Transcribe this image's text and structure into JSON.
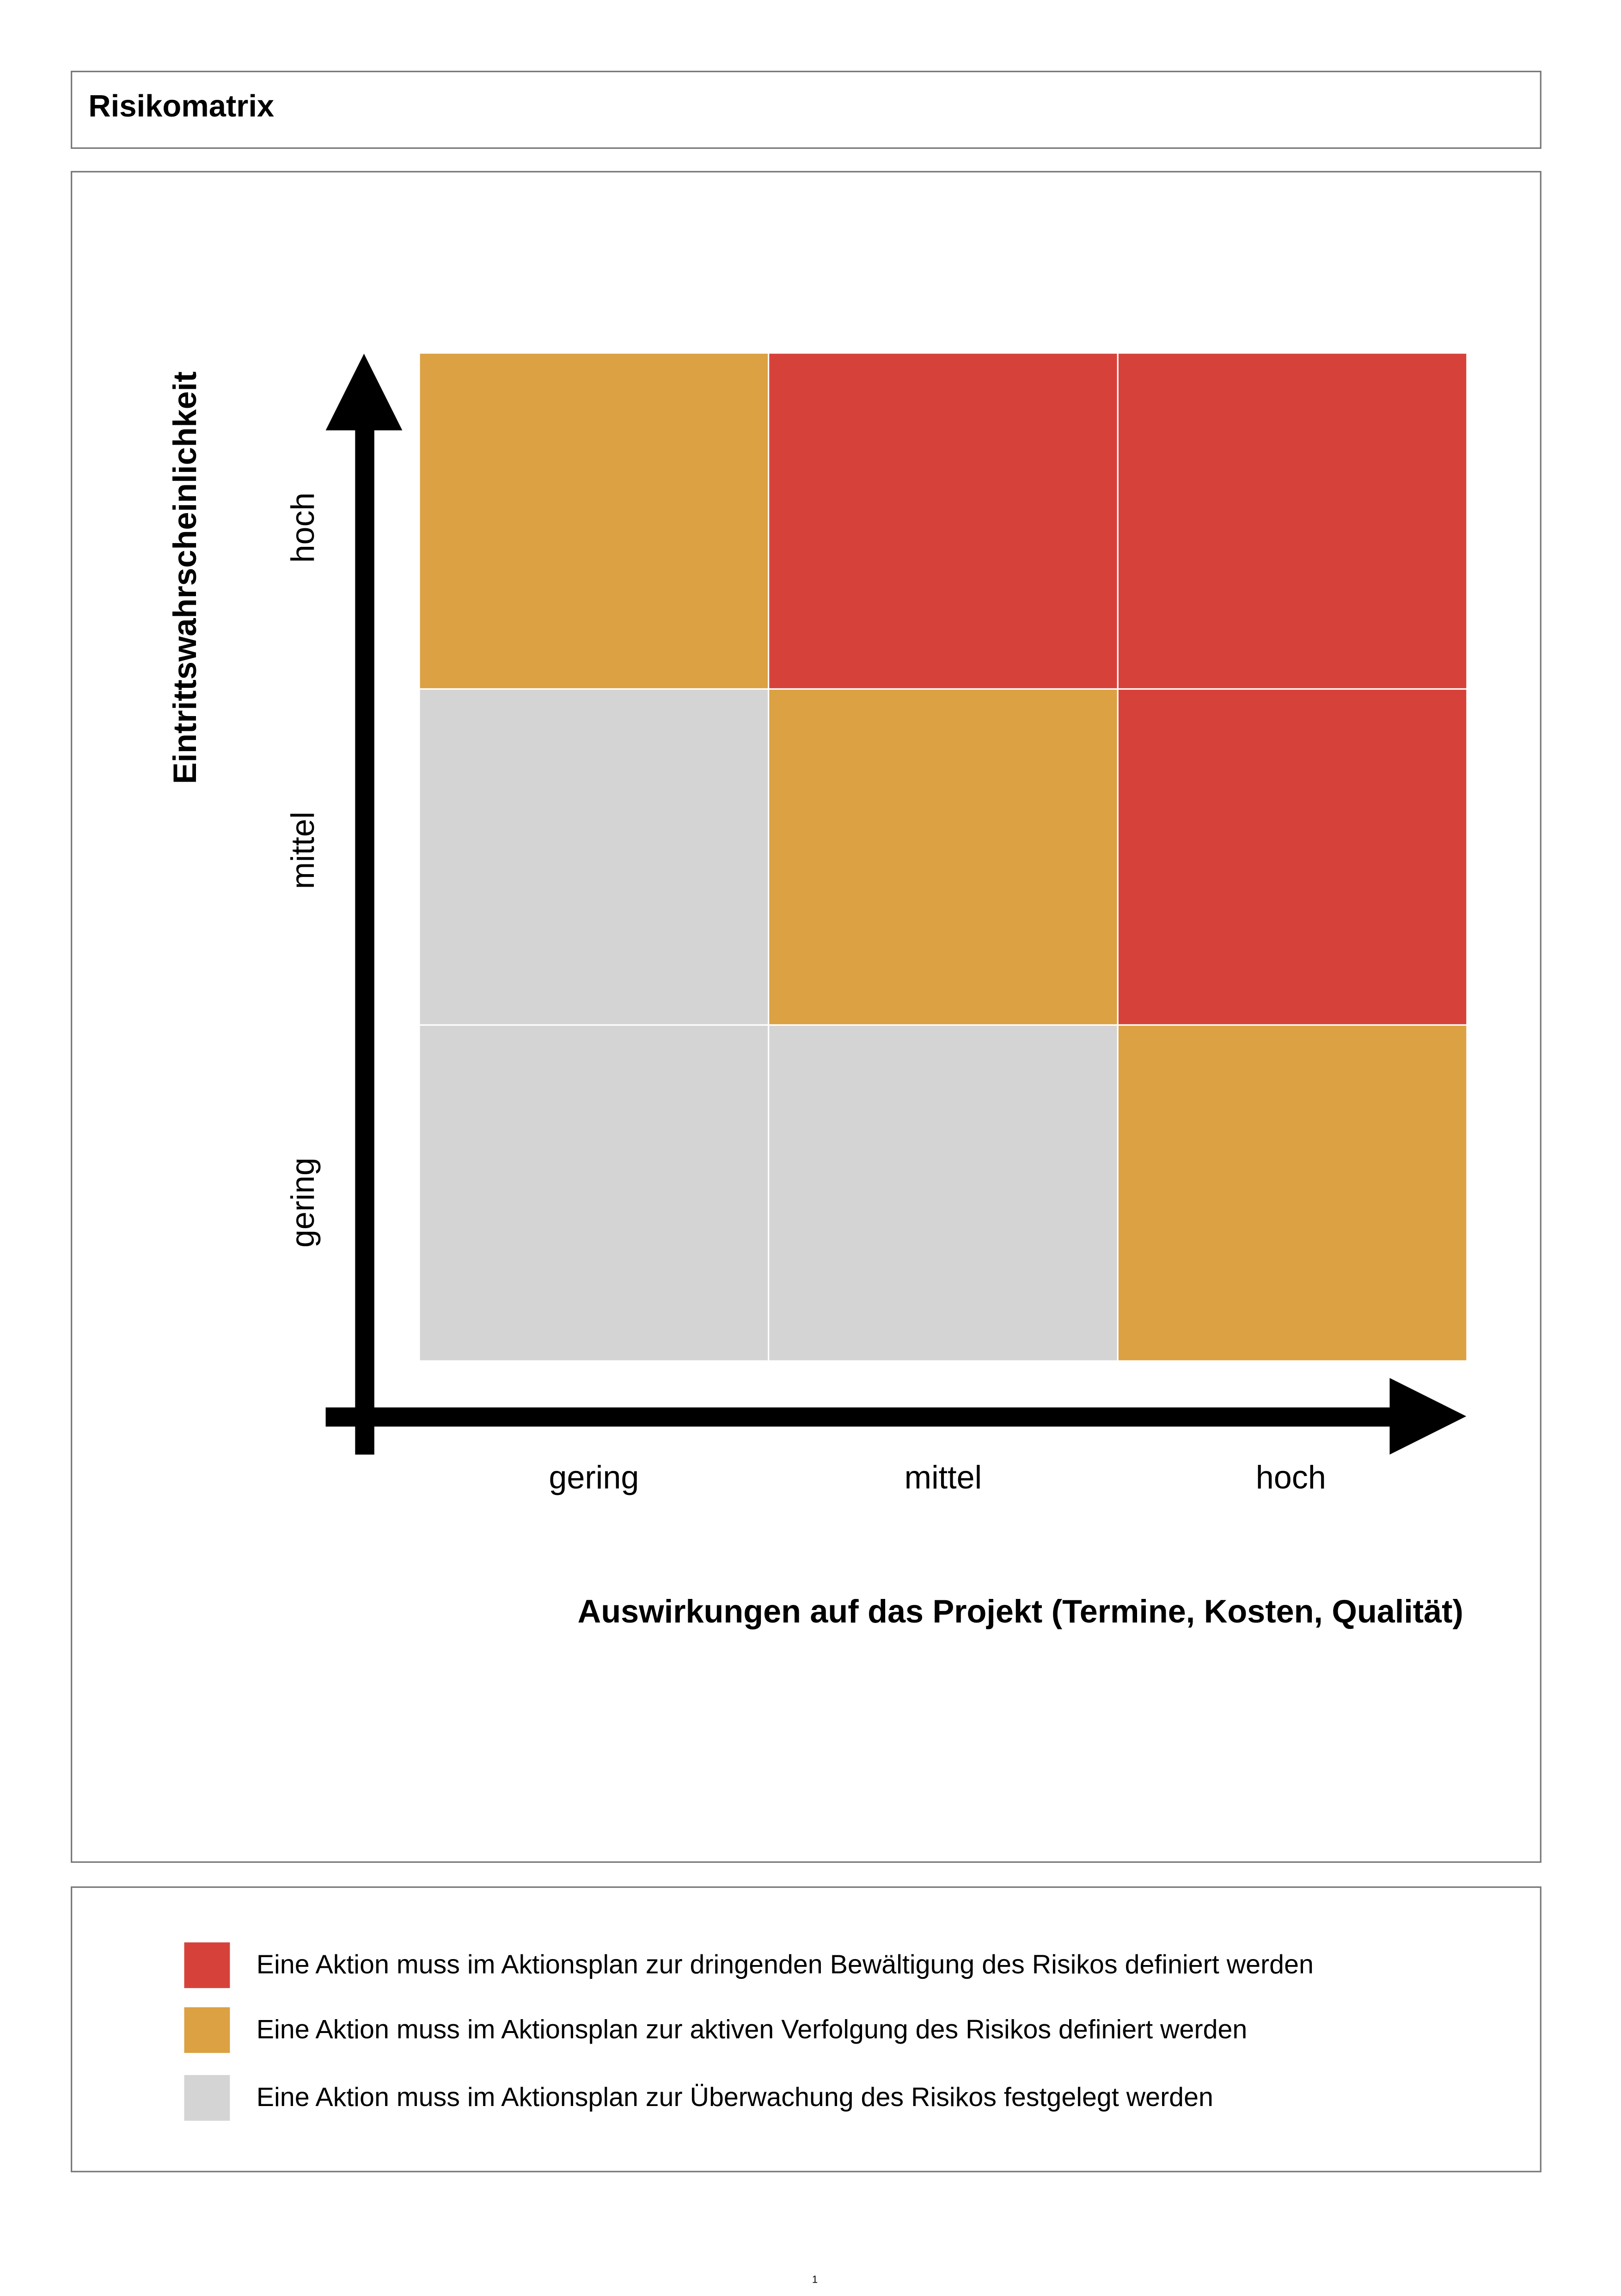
{
  "title": "Risikomatrix",
  "colors": {
    "red": "#D6423A",
    "orange": "#DBA142",
    "gray": "#D4D4D4"
  },
  "matrix": {
    "y_axis_title": "Eintrittswahrscheinlichkeit",
    "x_axis_title": "Auswirkungen auf das Projekt (Termine, Kosten, Qualität)",
    "y_levels": [
      "hoch",
      "mittel",
      "gering"
    ],
    "x_levels": [
      "gering",
      "mittel",
      "hoch"
    ],
    "cells": [
      [
        "orange",
        "red",
        "red"
      ],
      [
        "gray",
        "orange",
        "red"
      ],
      [
        "gray",
        "gray",
        "orange"
      ]
    ]
  },
  "legend": [
    {
      "color": "red",
      "text": "Eine Aktion muss im Aktionsplan zur dringenden Bewältigung des Risikos definiert werden"
    },
    {
      "color": "orange",
      "text": "Eine Aktion muss im Aktionsplan zur aktiven Verfolgung des Risikos definiert werden"
    },
    {
      "color": "gray",
      "text": "Eine Aktion muss im Aktionsplan zur Überwachung des Risikos festgelegt werden"
    }
  ],
  "page_number": "1"
}
